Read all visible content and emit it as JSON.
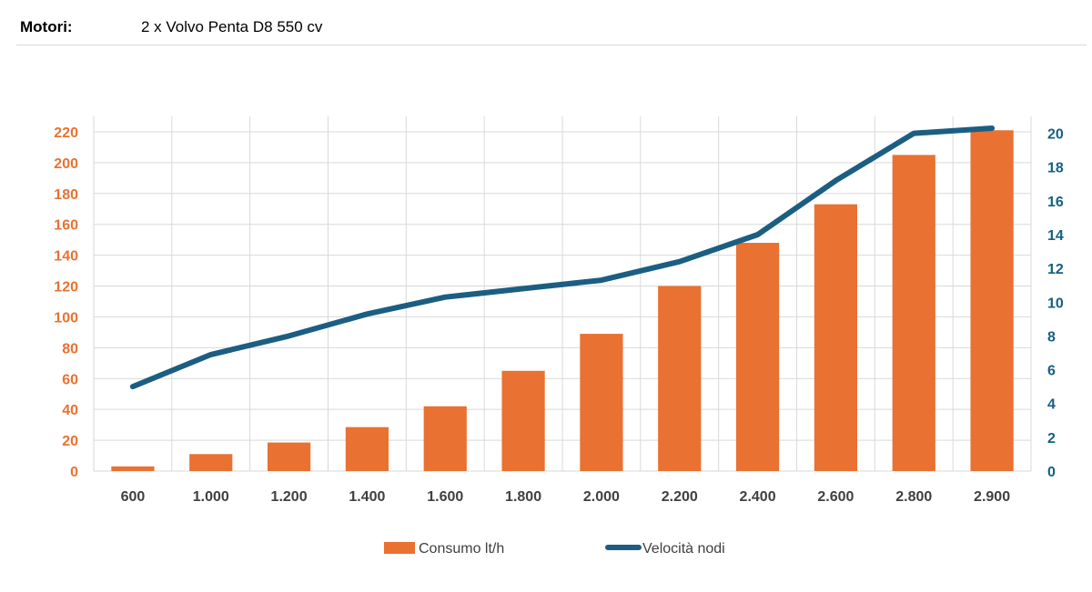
{
  "header": {
    "label": "Motori:",
    "value": "2 x Volvo Penta D8 550 cv"
  },
  "colors": {
    "bar": "#E97132",
    "line": "#1B5E82",
    "left_axis_text": "#E97132",
    "right_axis_text": "#156082",
    "grid": "#d9d9d9"
  },
  "chart_data": {
    "type": "bar",
    "categories": [
      "600",
      "1.000",
      "1.200",
      "1.400",
      "1.600",
      "1.800",
      "2.000",
      "2.200",
      "2.400",
      "2.600",
      "2.800",
      "2.900"
    ],
    "series": [
      {
        "name": "Consumo lt/h",
        "type": "bar",
        "axis": "left",
        "values": [
          3,
          11,
          18.5,
          28.5,
          42,
          65,
          89,
          120,
          148,
          173,
          205,
          221
        ]
      },
      {
        "name": "Velocità nodi",
        "type": "line",
        "axis": "right",
        "values": [
          5,
          6.9,
          8,
          9.3,
          10.3,
          10.8,
          11.3,
          12.4,
          14,
          17.2,
          20,
          20.3
        ]
      }
    ],
    "y_left": {
      "min": 0,
      "max": 230,
      "ticks": [
        "0",
        "20",
        "40",
        "60",
        "80",
        "100",
        "120",
        "140",
        "160",
        "180",
        "200",
        "220"
      ]
    },
    "y_right": {
      "min": 0,
      "max": 21,
      "ticks": [
        "0",
        "2",
        "4",
        "6",
        "8",
        "10",
        "12",
        "14",
        "16",
        "18",
        "20"
      ]
    },
    "grid": true,
    "legend": "bottom-center"
  }
}
